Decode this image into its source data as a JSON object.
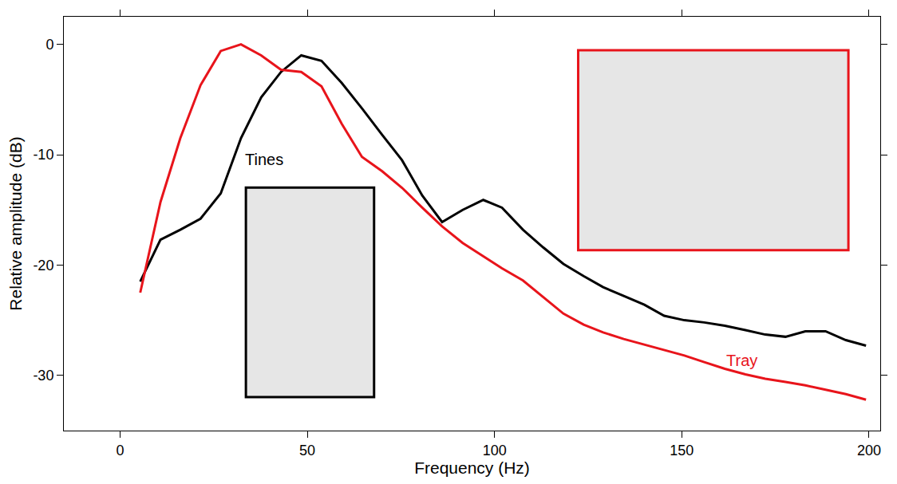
{
  "chart_data": {
    "type": "line",
    "x_label": "Frequency (Hz)",
    "y_label": "Relative amplitude (dB)",
    "xlim": [
      -15,
      203
    ],
    "ylim": [
      -35,
      2.5
    ],
    "xticks": [
      0,
      50,
      100,
      150,
      200
    ],
    "yticks": [
      0,
      -10,
      -20,
      -30
    ],
    "grid": false,
    "series": [
      {
        "name": "Tines",
        "color": "#000000",
        "x": [
          5.4,
          10.8,
          16.1,
          21.5,
          26.9,
          32.3,
          37.7,
          43,
          48.4,
          53.8,
          59.2,
          64.6,
          70,
          75.3,
          80.7,
          86,
          91.5,
          97,
          102,
          107.6,
          113,
          118.4,
          123.8,
          129,
          134.5,
          140,
          145.3,
          150.7,
          156,
          161.5,
          167,
          172.3,
          177.7,
          183,
          188.4,
          193.8,
          199.2
        ],
        "values": [
          -21.5,
          -17.7,
          -16.8,
          -15.8,
          -13.5,
          -8.5,
          -4.8,
          -2.5,
          -1,
          -1.5,
          -3.5,
          -5.8,
          -8.2,
          -10.5,
          -13.7,
          -16.1,
          -15,
          -14.1,
          -14.8,
          -16.8,
          -18.4,
          -19.9,
          -21,
          -22,
          -22.8,
          -23.6,
          -24.6,
          -25,
          -25.2,
          -25.5,
          -25.9,
          -26.3,
          -26.5,
          -26,
          -26,
          -26.8,
          -27.3
        ]
      },
      {
        "name": "Tray",
        "color": "#e8141b",
        "x": [
          5.4,
          10.8,
          16.1,
          21.5,
          26.9,
          32.3,
          37.7,
          43,
          48.4,
          53.8,
          59.2,
          64.6,
          70,
          75.3,
          80.7,
          86,
          91.5,
          97,
          102,
          107.6,
          113,
          118.4,
          123.8,
          129,
          134.5,
          140,
          145.3,
          150.7,
          156,
          161.5,
          167,
          172.3,
          177.7,
          183,
          188.4,
          193.8,
          199.2
        ],
        "values": [
          -22.5,
          -14.3,
          -8.5,
          -3.7,
          -0.6,
          0,
          -1,
          -2.3,
          -2.5,
          -3.8,
          -7.2,
          -10.2,
          -11.5,
          -13,
          -14.8,
          -16.5,
          -18,
          -19.2,
          -20.3,
          -21.4,
          -22.9,
          -24.4,
          -25.4,
          -26.1,
          -26.7,
          -27.2,
          -27.7,
          -28.2,
          -28.8,
          -29.4,
          -29.9,
          -30.3,
          -30.6,
          -30.9,
          -31.3,
          -31.7,
          -32.2
        ]
      }
    ]
  }
}
